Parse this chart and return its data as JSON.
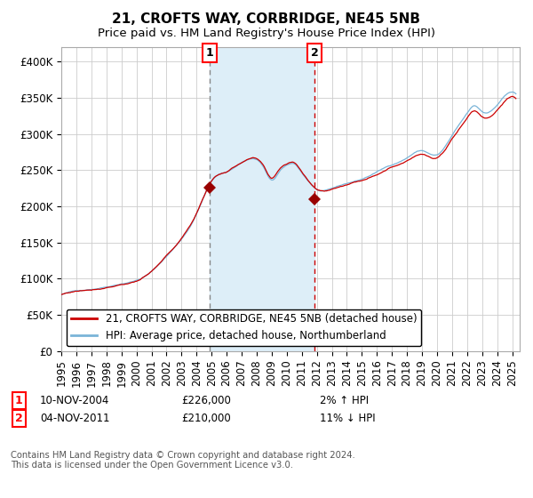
{
  "title": "21, CROFTS WAY, CORBRIDGE, NE45 5NB",
  "subtitle": "Price paid vs. HM Land Registry's House Price Index (HPI)",
  "ylim": [
    0,
    420000
  ],
  "yticks": [
    0,
    50000,
    100000,
    150000,
    200000,
    250000,
    300000,
    350000,
    400000
  ],
  "ytick_labels": [
    "£0",
    "£50K",
    "£100K",
    "£150K",
    "£200K",
    "£250K",
    "£300K",
    "£350K",
    "£400K"
  ],
  "xlim_start": 1995.0,
  "xlim_end": 2025.5,
  "sale1_date": 2004.86,
  "sale1_price": 226000,
  "sale2_date": 2011.84,
  "sale2_price": 210000,
  "hpi_color": "#7ab4d8",
  "price_color": "#cc0000",
  "marker_color": "#990000",
  "vline1_color": "#888888",
  "vline2_color": "#cc0000",
  "shade_color": "#ddeef8",
  "grid_color": "#cccccc",
  "legend1_label": "21, CROFTS WAY, CORBRIDGE, NE45 5NB (detached house)",
  "legend2_label": "HPI: Average price, detached house, Northumberland",
  "note1_date": "10-NOV-2004",
  "note1_price": "£226,000",
  "note1_hpi": "2% ↑ HPI",
  "note2_date": "04-NOV-2011",
  "note2_price": "£210,000",
  "note2_hpi": "11% ↓ HPI",
  "copyright": "Contains HM Land Registry data © Crown copyright and database right 2024.\nThis data is licensed under the Open Government Licence v3.0.",
  "title_fontsize": 11,
  "subtitle_fontsize": 9.5,
  "tick_fontsize": 8.5,
  "legend_fontsize": 8.5,
  "note_fontsize": 8.5,
  "hpi_waypoints_x": [
    1995.0,
    1996.0,
    1997.0,
    1998.0,
    1999.0,
    2000.0,
    2001.0,
    2002.0,
    2003.0,
    2004.0,
    2005.0,
    2006.0,
    2007.5,
    2008.5,
    2009.0,
    2009.5,
    2010.0,
    2010.5,
    2011.0,
    2011.5,
    2012.0,
    2013.0,
    2014.0,
    2015.0,
    2016.0,
    2017.0,
    2018.0,
    2019.0,
    2020.0,
    2021.0,
    2022.0,
    2022.5,
    2023.0,
    2024.0,
    2025.0,
    2025.3
  ],
  "hpi_waypoints_y": [
    78000,
    83000,
    86000,
    90000,
    95000,
    100000,
    112000,
    133000,
    157000,
    192000,
    237000,
    250000,
    268000,
    255000,
    238000,
    250000,
    258000,
    260000,
    248000,
    235000,
    225000,
    225000,
    232000,
    238000,
    248000,
    258000,
    268000,
    278000,
    272000,
    298000,
    328000,
    338000,
    330000,
    340000,
    358000,
    354000
  ]
}
